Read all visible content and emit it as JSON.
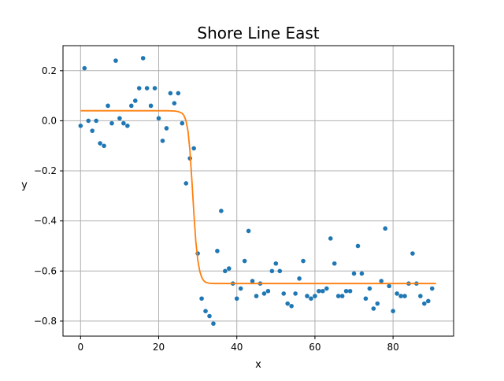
{
  "chart_data": {
    "type": "scatter",
    "title": "Shore Line East",
    "xlabel": "x",
    "ylabel": "y",
    "xlim": [
      -4.5,
      95.5
    ],
    "ylim": [
      -0.86,
      0.3
    ],
    "xticks": [
      0,
      20,
      40,
      60,
      80
    ],
    "yticks": [
      0.2,
      0.0,
      -0.2,
      -0.4,
      -0.6,
      -0.8
    ],
    "xtick_labels": [
      "0",
      "20",
      "40",
      "60",
      "80"
    ],
    "ytick_labels": [
      "0.2",
      "0.0",
      "−0.2",
      "−0.4",
      "−0.6",
      "−0.8"
    ],
    "grid": true,
    "series": [
      {
        "kind": "scatter",
        "color": "#1f77b4",
        "x": [
          0,
          1,
          2,
          3,
          4,
          5,
          6,
          7,
          8,
          9,
          10,
          11,
          12,
          13,
          14,
          15,
          16,
          17,
          18,
          19,
          20,
          21,
          22,
          23,
          24,
          25,
          26,
          27,
          28,
          29,
          30,
          31,
          32,
          33,
          34,
          35,
          36,
          37,
          38,
          39,
          40,
          41,
          42,
          43,
          44,
          45,
          46,
          47,
          48,
          49,
          50,
          51,
          52,
          53,
          54,
          55,
          56,
          57,
          58,
          59,
          60,
          61,
          62,
          63,
          64,
          65,
          66,
          67,
          68,
          69,
          70,
          71,
          72,
          73,
          74,
          75,
          76,
          77,
          78,
          79,
          80,
          81,
          82,
          83,
          84,
          85,
          86,
          87,
          88,
          89,
          90
        ],
        "y": [
          -0.02,
          0.21,
          0.0,
          -0.04,
          0.0,
          -0.09,
          -0.1,
          0.06,
          -0.01,
          0.24,
          0.01,
          -0.01,
          -0.02,
          0.06,
          0.08,
          0.13,
          0.25,
          0.13,
          0.06,
          0.13,
          0.01,
          -0.08,
          -0.03,
          0.11,
          0.07,
          0.11,
          -0.01,
          -0.25,
          -0.15,
          -0.11,
          -0.53,
          -0.71,
          -0.76,
          -0.78,
          -0.81,
          -0.52,
          -0.36,
          -0.6,
          -0.59,
          -0.65,
          -0.71,
          -0.67,
          -0.56,
          -0.44,
          -0.64,
          -0.7,
          -0.65,
          -0.69,
          -0.68,
          -0.6,
          -0.57,
          -0.6,
          -0.69,
          -0.73,
          -0.74,
          -0.69,
          -0.63,
          -0.56,
          -0.7,
          -0.71,
          -0.7,
          -0.68,
          -0.68,
          -0.67,
          -0.47,
          -0.57,
          -0.7,
          -0.7,
          -0.68,
          -0.68,
          -0.61,
          -0.5,
          -0.61,
          -0.71,
          -0.67,
          -0.75,
          -0.73,
          -0.64,
          -0.43,
          -0.66,
          -0.76,
          -0.69,
          -0.7,
          -0.7,
          -0.65,
          -0.53,
          -0.65,
          -0.7,
          -0.73,
          -0.72,
          -0.67
        ]
      },
      {
        "kind": "line",
        "color": "#ff7f0e",
        "x": [
          0,
          5,
          10,
          15,
          20,
          22,
          24,
          25,
          26,
          26.5,
          27,
          27.5,
          28,
          28.5,
          29,
          29.5,
          30,
          30.5,
          31,
          31.5,
          32,
          33,
          34,
          36,
          40,
          50,
          60,
          70,
          80,
          91
        ],
        "y": [
          0.04,
          0.04,
          0.04,
          0.04,
          0.04,
          0.04,
          0.039,
          0.037,
          0.03,
          0.02,
          0.0,
          -0.04,
          -0.12,
          -0.24,
          -0.37,
          -0.48,
          -0.555,
          -0.6,
          -0.625,
          -0.638,
          -0.645,
          -0.649,
          -0.65,
          -0.65,
          -0.65,
          -0.65,
          -0.65,
          -0.65,
          -0.65,
          -0.65
        ]
      }
    ]
  }
}
